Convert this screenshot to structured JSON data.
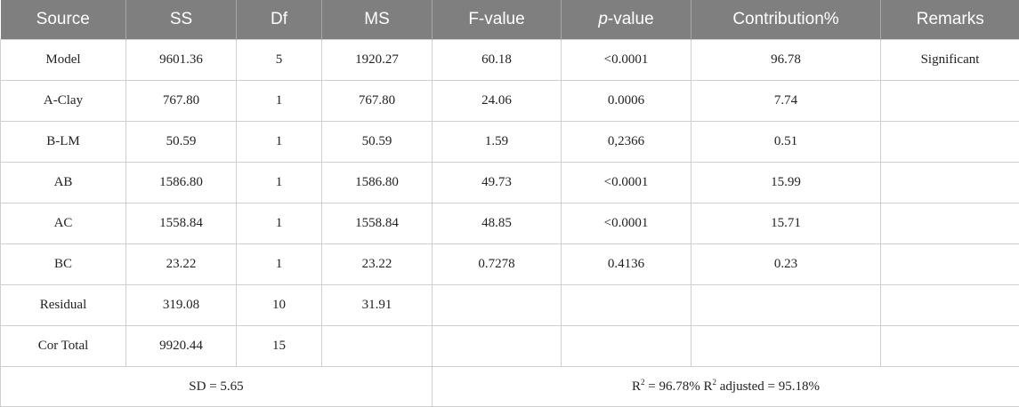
{
  "headers": [
    "Source",
    "SS",
    "Df",
    "MS",
    "F-value",
    "p-value",
    "Contribution%",
    "Remarks"
  ],
  "header_pvalue_italic": "p",
  "header_pvalue_rest": "-value",
  "rows": [
    [
      "Model",
      "9601.36",
      "5",
      "1920.27",
      "60.18",
      "<0.0001",
      "96.78",
      "Significant"
    ],
    [
      "A-Clay",
      "767.80",
      "1",
      "767.80",
      "24.06",
      "0.0006",
      "7.74",
      ""
    ],
    [
      "B-LM",
      "50.59",
      "1",
      "50.59",
      "1.59",
      "0,2366",
      "0.51",
      ""
    ],
    [
      "AB",
      "1586.80",
      "1",
      "1586.80",
      "49.73",
      "<0.0001",
      "15.99",
      ""
    ],
    [
      "AC",
      "1558.84",
      "1",
      "1558.84",
      "48.85",
      "<0.0001",
      "15.71",
      ""
    ],
    [
      "BC",
      "23.22",
      "1",
      "23.22",
      "0.7278",
      "0.4136",
      "0.23",
      ""
    ],
    [
      "Residual",
      "319.08",
      "10",
      "31.91",
      "",
      "",
      "",
      ""
    ],
    [
      "Cor Total",
      "9920.44",
      "15",
      "",
      "",
      "",
      "",
      ""
    ]
  ],
  "footer": {
    "sd": "SD = 5.65",
    "r2_label": "R",
    "r2_sup": "2",
    "r2_value": " = 96.78% R",
    "r2adj_sup": "2",
    "r2adj_value": " adjusted = 95.18%"
  }
}
